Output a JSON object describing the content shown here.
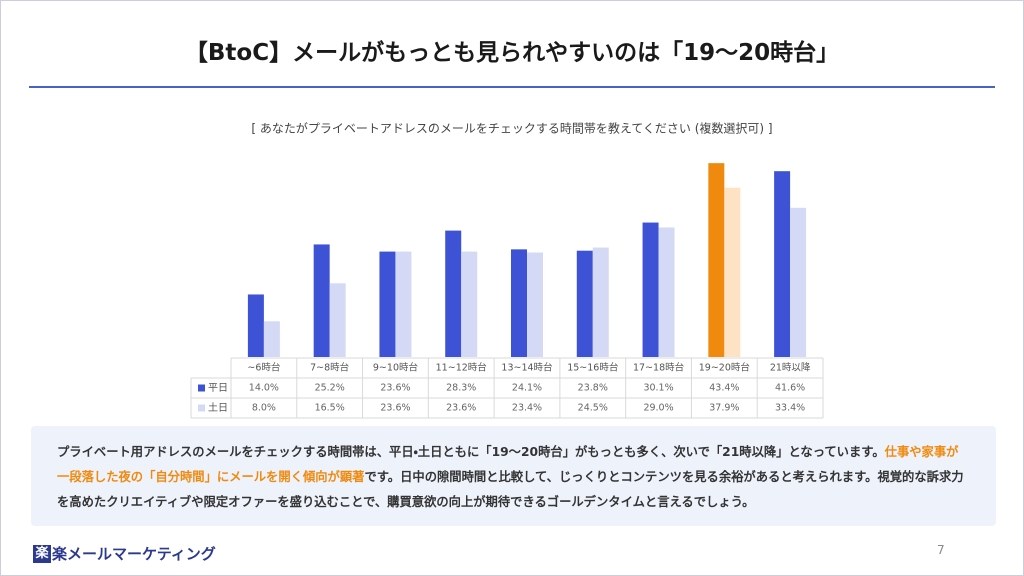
{
  "title": "【BtoC】メールがもっとも見られやすいのは「19～20時台」",
  "chart_data": {
    "type": "bar",
    "subtitle": "[ あなたがプライベートアドレスのメールをチェックする時間帯を教えてください (複数選択可) ]",
    "categories": [
      "~6時台",
      "7~8時台",
      "9~10時台",
      "11~12時台",
      "13~14時台",
      "15~16時台",
      "17~18時台",
      "19~20時台",
      "21時以降"
    ],
    "series": [
      {
        "name": "平日",
        "color": "#3d52d5",
        "colors": [
          "#3d52d5",
          "#3d52d5",
          "#3d52d5",
          "#3d52d5",
          "#3d52d5",
          "#3d52d5",
          "#3d52d5",
          "#f08a0f",
          "#3d52d5"
        ],
        "values": [
          14.0,
          25.2,
          23.6,
          28.3,
          24.1,
          23.8,
          30.1,
          43.4,
          41.6
        ],
        "value_labels": [
          "14.0%",
          "25.2%",
          "23.6%",
          "28.3%",
          "24.1%",
          "23.8%",
          "30.1%",
          "43.4%",
          "41.6%"
        ]
      },
      {
        "name": "土日",
        "color": "#d4daf5",
        "colors": [
          "#d4daf5",
          "#d4daf5",
          "#d4daf5",
          "#d4daf5",
          "#d4daf5",
          "#d4daf5",
          "#d4daf5",
          "#fde3c3",
          "#d4daf5"
        ],
        "values": [
          8.0,
          16.5,
          23.6,
          23.6,
          23.4,
          24.5,
          29.0,
          37.9,
          33.4
        ],
        "value_labels": [
          "8.0%",
          "16.5%",
          "23.6%",
          "23.6%",
          "23.4%",
          "24.5%",
          "29.0%",
          "37.9%",
          "33.4%"
        ]
      }
    ],
    "ylim": [
      0,
      45
    ]
  },
  "body": {
    "segments": [
      "プライベート用アドレスのメールをチェックする時間帯は、平日・土日ともに「19～20時台」がもっとも多く、次いで「21時以降」となっています。",
      "仕事や家事が一段落した夜の「自分時間」にメールを開く傾向が顕著",
      "です。日中の隙間時間と比較して、じっくりとコンテンツを見る余裕があると考えられます。視覚的な訴求力を高めたクリエイティブや限定オファーを盛り込むことで、購買意欲の向上が期待できるゴールデンタイムと言えるでしょう。"
    ]
  },
  "footer": {
    "logo_icon": "楽",
    "logo_text": "楽メールマーケティング",
    "page_number": "7"
  }
}
